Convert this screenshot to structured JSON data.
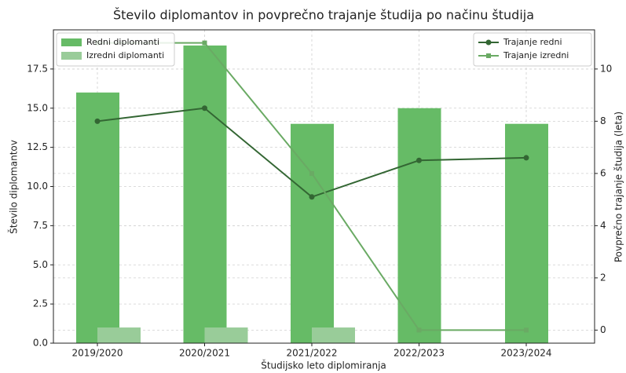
{
  "chart_data": {
    "type": "bar",
    "title": "Število diplomantov in povprečno trajanje študija po načinu študija",
    "xlabel": "Študijsko leto diplomiranja",
    "ylabel": "Število diplomantov",
    "y2label": "Povprečno trajanje študija (leta)",
    "categories": [
      "2019/2020",
      "2020/2021",
      "2021/2022",
      "2022/2023",
      "2023/2024"
    ],
    "series": [
      {
        "name": "Redni diplomanti",
        "type": "bar",
        "color": "#66bb66",
        "values": [
          16,
          19,
          14,
          15,
          14
        ]
      },
      {
        "name": "Izredni diplomanti",
        "type": "bar",
        "color": "#99cc99",
        "values": [
          1,
          1,
          1,
          0,
          0
        ]
      },
      {
        "name": "Trajanje redni",
        "type": "line",
        "axis": "y2",
        "marker": "circle",
        "color": "#336633",
        "values": [
          8.0,
          8.5,
          5.1,
          6.5,
          6.6
        ]
      },
      {
        "name": "Trajanje izredni",
        "type": "line",
        "axis": "y2",
        "marker": "square",
        "color": "#6aaa64",
        "values": [
          11.0,
          11.0,
          6.0,
          0,
          0
        ]
      }
    ],
    "ylim": [
      0,
      20
    ],
    "yticks": [
      {
        "value": 0,
        "label": "0.0"
      },
      2.5,
      {
        "value": 5,
        "label": "5.0"
      },
      7.5,
      {
        "value": 10,
        "label": "10.0"
      },
      12.5,
      {
        "value": 15,
        "label": "15.0"
      },
      17.5
    ],
    "y2lim": [
      -0.5,
      11.5
    ],
    "y2ticks": [
      0,
      2,
      4,
      6,
      8,
      10
    ],
    "grid": true,
    "legend": "upper left",
    "legend2": "upper right"
  }
}
